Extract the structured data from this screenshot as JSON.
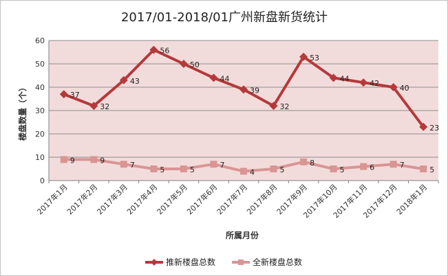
{
  "chart_data": {
    "type": "line",
    "title": "2017/01-2018/01广州新盘新货统计",
    "xlabel": "所属月份",
    "ylabel": "楼盘数量（个）",
    "ylim": [
      0,
      60
    ],
    "yticks": [
      0,
      10,
      20,
      30,
      40,
      50,
      60
    ],
    "grid": true,
    "legend_position": "bottom",
    "categories": [
      "2017年1月",
      "2017年2月",
      "2017年3月",
      "2017年4月",
      "2017年5月",
      "2017年6月",
      "2017年7月",
      "2017年8月",
      "2017年9月",
      "2017年10月",
      "2017年11月",
      "2017年12月",
      "2018年1月"
    ],
    "series": [
      {
        "name": "推新楼盘总数",
        "color": "#b5393b",
        "marker": "diamond",
        "values": [
          37,
          32,
          43,
          56,
          50,
          44,
          39,
          32,
          53,
          44,
          42,
          40,
          23
        ]
      },
      {
        "name": "全新楼盘总数",
        "color": "#d99594",
        "marker": "square",
        "values": [
          9,
          9,
          7,
          5,
          5,
          7,
          4,
          5,
          8,
          5,
          6,
          7,
          5
        ]
      }
    ],
    "plot_background": "#f2dcdb"
  }
}
